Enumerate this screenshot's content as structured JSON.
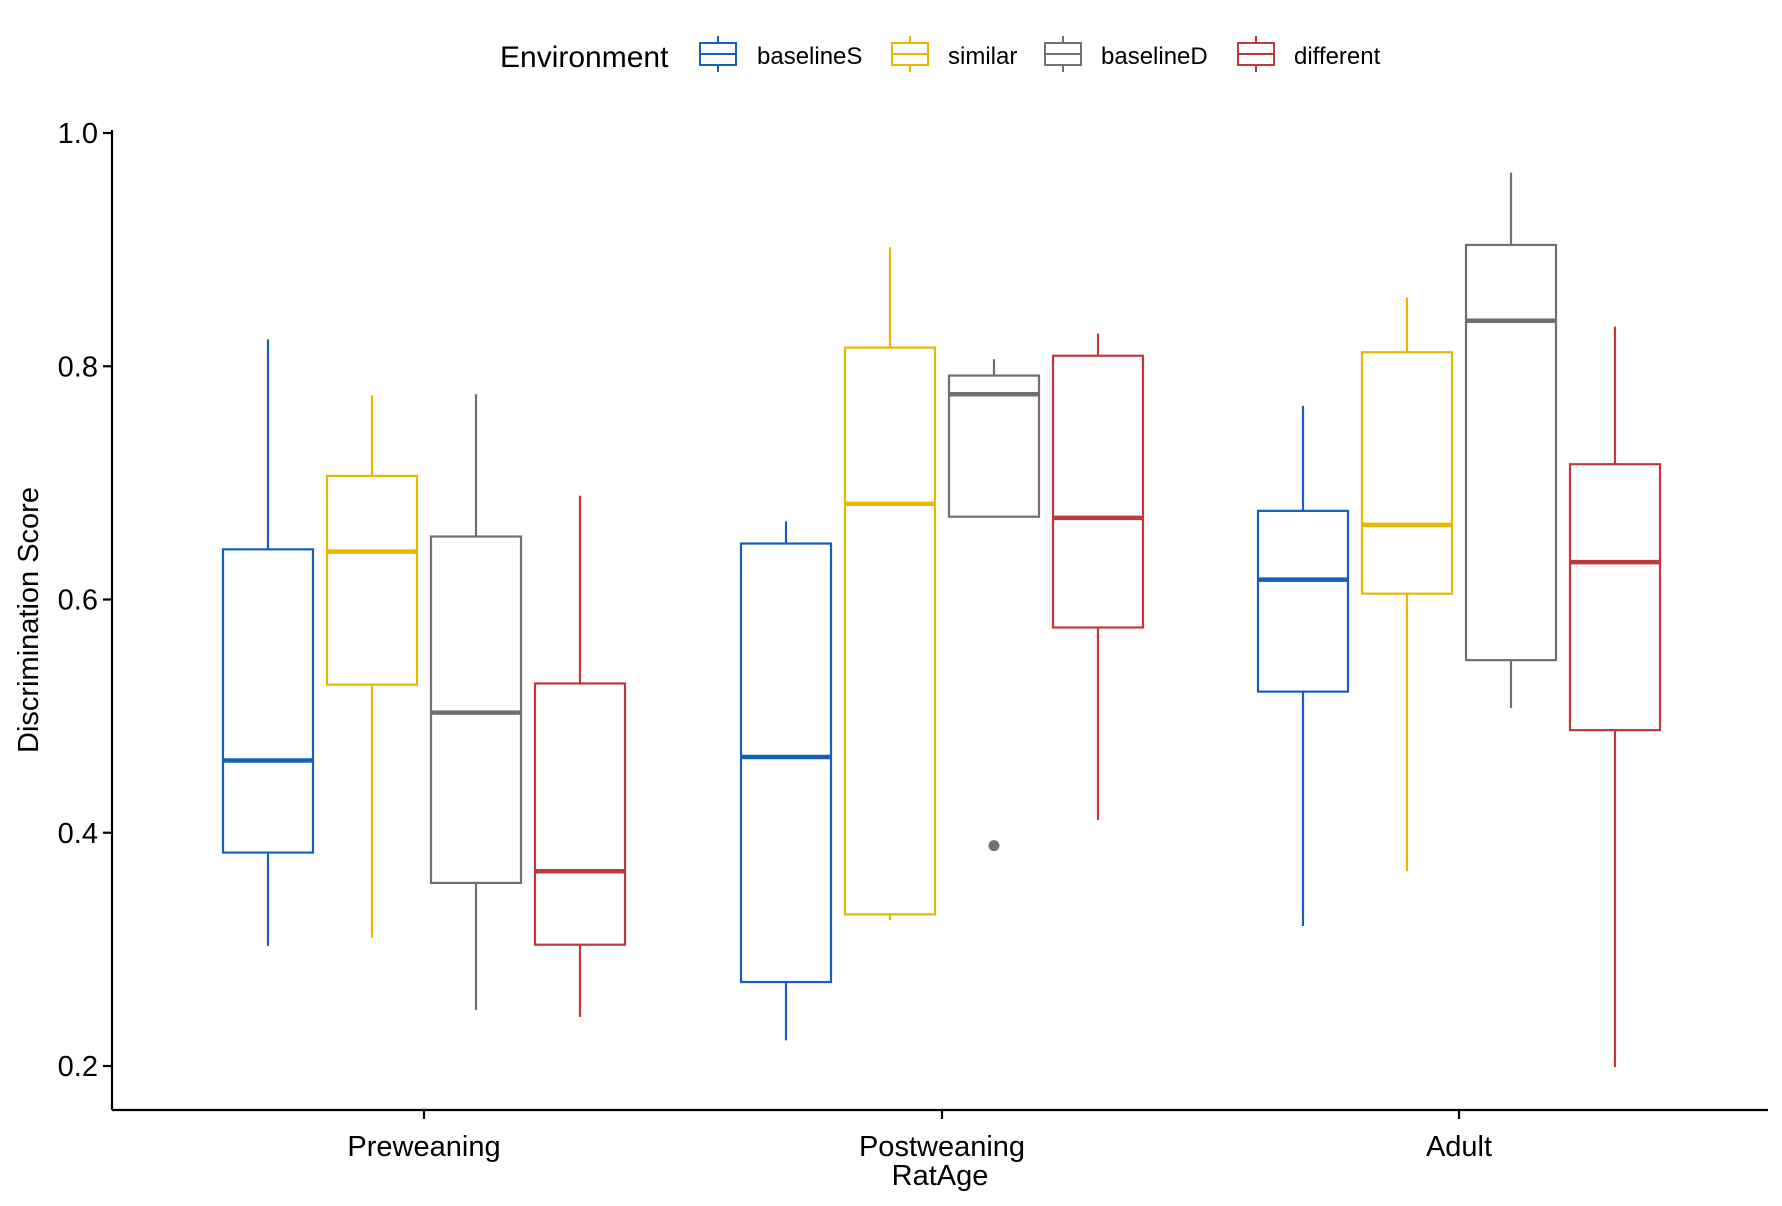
{
  "chart_data": {
    "type": "boxplot",
    "xlabel": "RatAge",
    "ylabel": "Discrimination Score",
    "ylim": [
      0.18,
      1.0
    ],
    "yticks": [
      0.2,
      0.4,
      0.6,
      0.8,
      1.0
    ],
    "ytick_labels": [
      "0.2",
      "0.4",
      "0.6",
      "0.8",
      "1.0"
    ],
    "categories": [
      "Preweaning",
      "Postweaning",
      "Adult"
    ],
    "legend": {
      "title": "Environment",
      "position": "top"
    },
    "grid": false,
    "series": [
      {
        "name": "baselineS",
        "color": "#1560BD",
        "boxes": [
          {
            "min": 0.303,
            "q1": 0.383,
            "median": 0.462,
            "q3": 0.643,
            "max": 0.823,
            "outliers": []
          },
          {
            "min": 0.222,
            "q1": 0.272,
            "median": 0.465,
            "q3": 0.648,
            "max": 0.667,
            "outliers": []
          },
          {
            "min": 0.32,
            "q1": 0.521,
            "median": 0.617,
            "q3": 0.676,
            "max": 0.766,
            "outliers": []
          }
        ]
      },
      {
        "name": "similar",
        "color": "#E7B800",
        "boxes": [
          {
            "min": 0.31,
            "q1": 0.527,
            "median": 0.641,
            "q3": 0.706,
            "max": 0.775,
            "outliers": []
          },
          {
            "min": 0.325,
            "q1": 0.33,
            "median": 0.682,
            "q3": 0.816,
            "max": 0.902,
            "outliers": []
          },
          {
            "min": 0.367,
            "q1": 0.605,
            "median": 0.664,
            "q3": 0.812,
            "max": 0.859,
            "outliers": []
          }
        ]
      },
      {
        "name": "baselineD",
        "color": "#707070",
        "boxes": [
          {
            "min": 0.248,
            "q1": 0.357,
            "median": 0.503,
            "q3": 0.654,
            "max": 0.776,
            "outliers": []
          },
          {
            "min": 0.671,
            "q1": 0.671,
            "median": 0.776,
            "q3": 0.792,
            "max": 0.806,
            "outliers": [
              0.389
            ]
          },
          {
            "min": 0.507,
            "q1": 0.548,
            "median": 0.839,
            "q3": 0.904,
            "max": 0.966,
            "outliers": []
          }
        ]
      },
      {
        "name": "different",
        "color": "#C0393B",
        "boxes": [
          {
            "min": 0.242,
            "q1": 0.304,
            "median": 0.367,
            "q3": 0.528,
            "max": 0.689,
            "outliers": []
          },
          {
            "min": 0.411,
            "q1": 0.576,
            "median": 0.67,
            "q3": 0.809,
            "max": 0.828,
            "outliers": []
          },
          {
            "min": 0.199,
            "q1": 0.488,
            "median": 0.632,
            "q3": 0.716,
            "max": 0.834,
            "outliers": []
          }
        ]
      }
    ]
  }
}
